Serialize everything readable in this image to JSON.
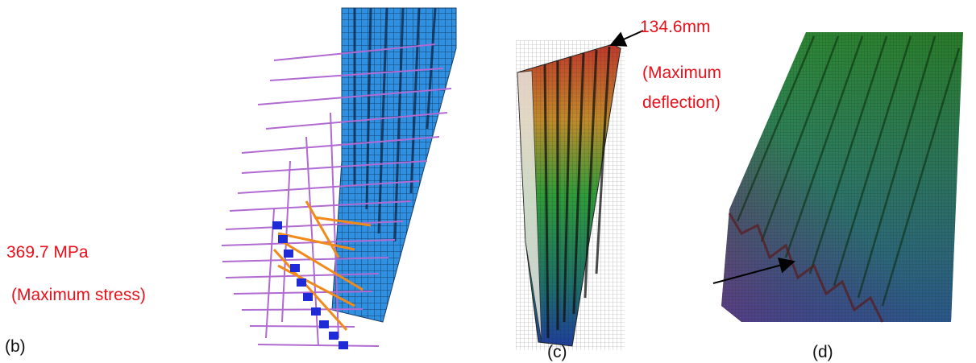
{
  "panels": {
    "b": {
      "label": "(b)"
    },
    "c": {
      "label": "(c)"
    },
    "d": {
      "label": "(d)"
    }
  },
  "annotations": {
    "stress_value": "369.7 MPa",
    "stress_caption": "(Maximum stress)",
    "deflection_value": "134.6mm",
    "deflection_caption_line1": "(Maximum",
    "deflection_caption_line2": "deflection)"
  },
  "colors": {
    "annotation_text": "#e8101a",
    "panel_label_text": "#111111",
    "mesh_blue": "#2f8fe0",
    "load_arrows": "#b06ad2",
    "constraint_orange": "#f08a1a",
    "constraint_blue": "#1e2bd6",
    "contour_high": "#c0392b",
    "contour_mid": "#2f9c3a",
    "contour_low": "#1f3f9c"
  }
}
